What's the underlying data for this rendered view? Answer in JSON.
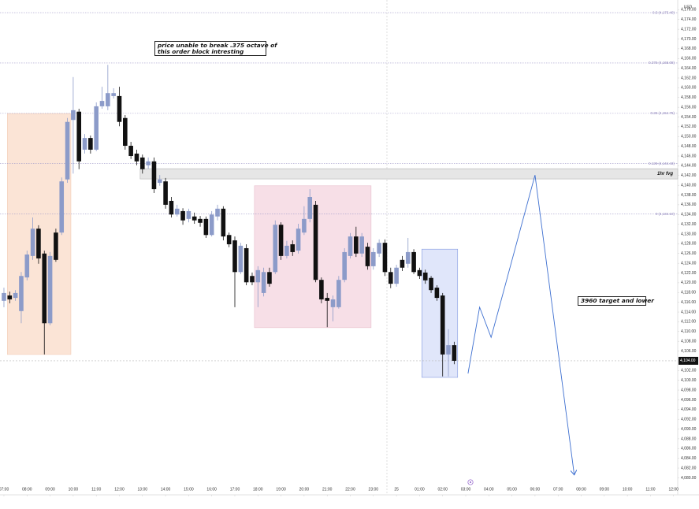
{
  "chart_data": {
    "type": "candlestick",
    "unit": "USD",
    "up_color": "#8c9bc9",
    "down_color": "#111111",
    "x": [
      0,
      0.25,
      0.5,
      0.75,
      1,
      1.25,
      1.5,
      1.75,
      2,
      2.25,
      2.5,
      2.75,
      3,
      3.25,
      3.5,
      3.75,
      4,
      4.25,
      4.5,
      4.75,
      5,
      5.25,
      5.5,
      5.75,
      6,
      6.25,
      6.5,
      6.75,
      7,
      7.25,
      7.5,
      7.75,
      8,
      8.25,
      8.5,
      8.75,
      9,
      9.25,
      9.5,
      9.75,
      10,
      10.25,
      10.5,
      10.75,
      11,
      11.25,
      11.5,
      11.75,
      12,
      12.25,
      12.5,
      12.75,
      13,
      13.25,
      13.5,
      13.75,
      14,
      14.25,
      14.5,
      14.75,
      15,
      15.25,
      15.5,
      15.75,
      16,
      16.25,
      16.5,
      16.75,
      17,
      17.25,
      17.5,
      17.75,
      18,
      18.25,
      18.5,
      18.75,
      19,
      19.25,
      19.5
    ],
    "open": [
      4116.3,
      4117.4,
      4116.9,
      4114.2,
      4121.1,
      4125.5,
      4131.1,
      4126.0,
      4111.7,
      4130.3,
      4130.3,
      4141.2,
      4153.4,
      4155.1,
      4147.3,
      4149.7,
      4147.3,
      4156.2,
      4156.2,
      4158.3,
      4158.3,
      4153.8,
      4148.1,
      4146.5,
      4145.7,
      4144.1,
      4144.9,
      4140.5,
      4140.8,
      4136.8,
      4134.0,
      4134.7,
      4133.1,
      4133.6,
      4133.1,
      4133.1,
      4129.8,
      4133.6,
      4135.2,
      4129.8,
      4128.7,
      4122.2,
      4127.1,
      4121.4,
      4120.1,
      4117.9,
      4122.2,
      4122.2,
      4131.9,
      4125.5,
      4127.9,
      4126.6,
      4130.3,
      4133.1,
      4136.0,
      4120.6,
      4116.9,
      4115.0,
      4115.0,
      4120.6,
      4125.5,
      4129.5,
      4126.0,
      4127.4,
      4123.4,
      4126.0,
      4128.2,
      4122.2,
      4119.8,
      4124.7,
      4123.9,
      4126.3,
      4122.6,
      4122.1,
      4121.0,
      4119.0,
      4117.4,
      4105.3,
      4107.2
    ],
    "high": [
      4119.0,
      4118.2,
      4118.5,
      4122.2,
      4126.6,
      4133.4,
      4131.8,
      4126.6,
      4126.3,
      4131.1,
      4141.6,
      4153.8,
      4162.2,
      4155.7,
      4150.5,
      4150.2,
      4157.0,
      4160.2,
      4164.7,
      4159.9,
      4160.2,
      4154.4,
      4148.9,
      4147.3,
      4146.3,
      4145.7,
      4145.7,
      4142.1,
      4141.5,
      4137.6,
      4136.0,
      4135.3,
      4135.2,
      4134.4,
      4133.7,
      4133.6,
      4134.7,
      4136.0,
      4135.7,
      4130.3,
      4129.5,
      4128.2,
      4127.9,
      4122.1,
      4123.4,
      4123.1,
      4123.1,
      4132.8,
      4132.4,
      4128.6,
      4128.7,
      4132.1,
      4135.7,
      4139.2,
      4136.8,
      4121.1,
      4117.9,
      4117.4,
      4121.4,
      4127.1,
      4130.2,
      4131.5,
      4130.2,
      4128.2,
      4127.1,
      4128.9,
      4128.9,
      4123.1,
      4123.7,
      4125.5,
      4129.2,
      4126.9,
      4123.1,
      4122.7,
      4121.4,
      4119.5,
      4117.9,
      4110.5,
      4107.9
    ],
    "low": [
      4115.0,
      4115.8,
      4116.3,
      4111.7,
      4120.5,
      4124.7,
      4123.9,
      4105.3,
      4111.3,
      4124.3,
      4129.8,
      4140.5,
      4142.4,
      4143.3,
      4146.5,
      4146.5,
      4147.0,
      4155.7,
      4155.4,
      4157.8,
      4152.1,
      4147.3,
      4145.4,
      4144.1,
      4142.4,
      4143.4,
      4138.4,
      4139.9,
      4135.2,
      4133.4,
      4133.6,
      4131.9,
      4132.4,
      4132.1,
      4131.5,
      4129.2,
      4129.5,
      4132.8,
      4128.7,
      4127.3,
      4115.0,
      4121.8,
      4119.5,
      4119.5,
      4115.0,
      4117.2,
      4119.2,
      4121.8,
      4124.7,
      4125.0,
      4125.5,
      4126.0,
      4129.8,
      4132.4,
      4120.1,
      4115.8,
      4110.9,
      4112.1,
      4114.7,
      4120.1,
      4125.0,
      4125.3,
      4125.3,
      4122.7,
      4122.7,
      4125.3,
      4121.4,
      4118.9,
      4119.2,
      4122.4,
      4123.1,
      4121.8,
      4120.8,
      4119.8,
      4117.9,
      4116.3,
      4100.8,
      4100.8,
      4103.3
    ],
    "close": [
      4117.9,
      4116.6,
      4117.9,
      4121.4,
      4125.8,
      4131.1,
      4125.0,
      4111.7,
      4125.5,
      4124.7,
      4140.8,
      4153.0,
      4155.4,
      4144.9,
      4149.7,
      4147.3,
      4156.2,
      4157.3,
      4158.9,
      4158.9,
      4153.0,
      4148.1,
      4146.0,
      4144.9,
      4143.3,
      4144.9,
      4139.2,
      4141.2,
      4136.0,
      4134.0,
      4135.2,
      4132.8,
      4134.7,
      4132.8,
      4132.3,
      4129.8,
      4134.0,
      4135.2,
      4129.5,
      4127.9,
      4122.2,
      4127.6,
      4120.1,
      4120.1,
      4122.6,
      4122.2,
      4119.8,
      4131.9,
      4125.5,
      4127.6,
      4126.3,
      4131.1,
      4133.1,
      4137.6,
      4120.6,
      4116.6,
      4116.3,
      4116.6,
      4120.6,
      4126.3,
      4129.5,
      4126.0,
      4129.5,
      4123.4,
      4126.3,
      4128.2,
      4122.2,
      4119.8,
      4123.1,
      4123.1,
      4126.3,
      4122.2,
      4121.4,
      4120.5,
      4118.5,
      4116.9,
      4105.3,
      4107.2,
      4104.0
    ],
    "xlim": [
      -0.17,
      29.18
    ],
    "ylim": [
      4077,
      4178
    ],
    "xticks": [
      {
        "value": 0,
        "label": "07:00"
      },
      {
        "value": 1,
        "label": "08:00"
      },
      {
        "value": 2,
        "label": "09:00"
      },
      {
        "value": 3,
        "label": "10:00"
      },
      {
        "value": 4,
        "label": "11:00"
      },
      {
        "value": 5,
        "label": "12:00"
      },
      {
        "value": 6,
        "label": "13:00"
      },
      {
        "value": 7,
        "label": "14:00"
      },
      {
        "value": 8,
        "label": "15:00"
      },
      {
        "value": 9,
        "label": "16:00"
      },
      {
        "value": 10,
        "label": "17:00"
      },
      {
        "value": 11,
        "label": "18:00"
      },
      {
        "value": 12,
        "label": "19:00"
      },
      {
        "value": 13,
        "label": "20:00"
      },
      {
        "value": 14,
        "label": "21:00"
      },
      {
        "value": 15,
        "label": "22:00"
      },
      {
        "value": 16,
        "label": "23:00"
      },
      {
        "value": 17,
        "label": "25"
      },
      {
        "value": 18,
        "label": "01:00"
      },
      {
        "value": 19,
        "label": "02:00"
      },
      {
        "value": 20,
        "label": "03:00"
      },
      {
        "value": 21,
        "label": "04:00"
      },
      {
        "value": 22,
        "label": "05:00"
      },
      {
        "value": 23,
        "label": "06:00"
      },
      {
        "value": 24,
        "label": "07:00"
      },
      {
        "value": 25,
        "label": "08:00"
      },
      {
        "value": 26,
        "label": "09:00"
      },
      {
        "value": 27,
        "label": "10:00"
      },
      {
        "value": 28,
        "label": "11:00"
      },
      {
        "value": 29,
        "label": "12:00"
      }
    ],
    "yticks": [
      {
        "value": 4080,
        "label": "4,080.00"
      },
      {
        "value": 4082,
        "label": "4,082.00"
      },
      {
        "value": 4084,
        "label": "4,084.00"
      },
      {
        "value": 4086,
        "label": "4,086.00"
      },
      {
        "value": 4088,
        "label": "4,088.00"
      },
      {
        "value": 4090,
        "label": "4,090.00"
      },
      {
        "value": 4092,
        "label": "4,092.00"
      },
      {
        "value": 4094,
        "label": "4,094.00"
      },
      {
        "value": 4096,
        "label": "4,096.00"
      },
      {
        "value": 4098,
        "label": "4,098.00"
      },
      {
        "value": 4100,
        "label": "4,100.00"
      },
      {
        "value": 4102,
        "label": "4,102.00"
      },
      {
        "value": 4106,
        "label": "4,106.00"
      },
      {
        "value": 4108,
        "label": "4,108.00"
      },
      {
        "value": 4110,
        "label": "4,110.00"
      },
      {
        "value": 4112,
        "label": "4,112.00"
      },
      {
        "value": 4114,
        "label": "4,114.00"
      },
      {
        "value": 4116,
        "label": "4,116.00"
      },
      {
        "value": 4118,
        "label": "4,118.00"
      },
      {
        "value": 4120,
        "label": "4,120.00"
      },
      {
        "value": 4122,
        "label": "4,122.00"
      },
      {
        "value": 4124,
        "label": "4,124.00"
      },
      {
        "value": 4126,
        "label": "4,126.00"
      },
      {
        "value": 4128,
        "label": "4,128.00"
      },
      {
        "value": 4130,
        "label": "4,130.00"
      },
      {
        "value": 4132,
        "label": "4,132.00"
      },
      {
        "value": 4134,
        "label": "4,134.00"
      },
      {
        "value": 4136,
        "label": "4,136.00"
      },
      {
        "value": 4138,
        "label": "4,138.00"
      },
      {
        "value": 4140,
        "label": "4,140.00"
      },
      {
        "value": 4142,
        "label": "4,142.00"
      },
      {
        "value": 4144,
        "label": "4,144.00"
      },
      {
        "value": 4146,
        "label": "4,146.00"
      },
      {
        "value": 4148,
        "label": "4,148.00"
      },
      {
        "value": 4150,
        "label": "4,150.00"
      },
      {
        "value": 4152,
        "label": "4,152.00"
      },
      {
        "value": 4154,
        "label": "4,154.00"
      },
      {
        "value": 4156,
        "label": "4,156.00"
      },
      {
        "value": 4158,
        "label": "4,158.00"
      },
      {
        "value": 4160,
        "label": "4,160.00"
      },
      {
        "value": 4162,
        "label": "4,162.00"
      },
      {
        "value": 4164,
        "label": "4,164.00"
      },
      {
        "value": 4166,
        "label": "4,166.00"
      },
      {
        "value": 4168,
        "label": "4,168.00"
      },
      {
        "value": 4170,
        "label": "4,170.00"
      },
      {
        "value": 4172,
        "label": "4,172.00"
      },
      {
        "value": 4174,
        "label": "4,174.00"
      },
      {
        "value": 4176,
        "label": "4,176.00"
      }
    ],
    "current_price": {
      "value": 4104.0,
      "label": "4,104.00"
    },
    "levels": [
      {
        "value": 4175.4,
        "label": "0.5 (4,175.40)"
      },
      {
        "value": 4165.08,
        "label": "0.375 (4,165.08)"
      },
      {
        "value": 4154.75,
        "label": "0.25 (4,154.75)"
      },
      {
        "value": 4144.43,
        "label": "0.125 (4,144.43)"
      },
      {
        "value": 4134.1,
        "label": "0 (4,134.10)"
      }
    ],
    "level_color": "#a19bc9",
    "zones": [
      {
        "x": [
          0.15,
          2.9
        ],
        "y": [
          4105.3,
          4154.7
        ],
        "color": "#fbe4d6",
        "border": "#f3cdb6"
      },
      {
        "x": [
          10.85,
          15.9
        ],
        "y": [
          4110.8,
          4139.9
        ],
        "color": "#f7dfe7",
        "border": "#e8bccb"
      },
      {
        "x": [
          18.1,
          19.65
        ],
        "y": [
          4100.6,
          4126.9
        ],
        "color": "#e0e6fa",
        "border": "#8399e0"
      }
    ],
    "fvg": {
      "label": "1hr fvg",
      "x": [
        5.9,
        29.18
      ],
      "y": [
        4141.3,
        4143.4
      ],
      "color": "#e6e6e6",
      "border": "#b5b5b5"
    },
    "projection": {
      "x": [
        20.1,
        20.6,
        21.1,
        23.0,
        24.7
      ],
      "y": [
        4101.4,
        4115.0,
        4108.8,
        4142.1,
        4080.6
      ],
      "color": "#3d6fd0"
    },
    "notes": [
      [
        "price unable to break .375 octave of",
        "this order block intresting"
      ],
      [
        "3960 target and lower"
      ]
    ]
  }
}
